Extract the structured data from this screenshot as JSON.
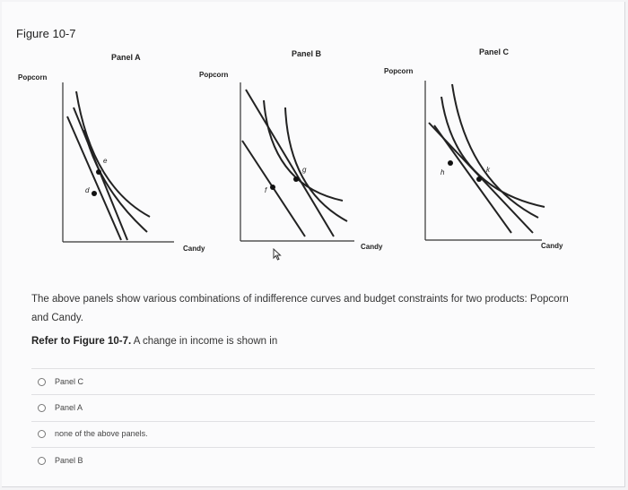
{
  "figure": {
    "title": "Figure 10-7",
    "panels": [
      {
        "label": "Panel A",
        "y_label": "Popcorn",
        "x_label": "",
        "points": [
          "e",
          "d"
        ]
      },
      {
        "label": "Panel B",
        "y_label": "Popcorn",
        "x_label": "Candy",
        "points": [
          "g",
          "f"
        ]
      },
      {
        "label": "Panel C",
        "y_label": "Popcorn",
        "x_label": "Candy",
        "points": [
          "k",
          "h"
        ]
      }
    ],
    "extra_x_label": "Candy"
  },
  "description": "The above panels show various combinations of indifference curves and budget constraints for two products: Popcorn and Candy.",
  "question": {
    "ref": "Refer to Figure 10-7.",
    "text": " A change in income is shown in"
  },
  "options": [
    {
      "label": "Panel C"
    },
    {
      "label": "Panel A"
    },
    {
      "label": "none of the above panels."
    },
    {
      "label": "Panel B"
    }
  ],
  "icons": {
    "cursor": "mouse-pointer-icon"
  }
}
